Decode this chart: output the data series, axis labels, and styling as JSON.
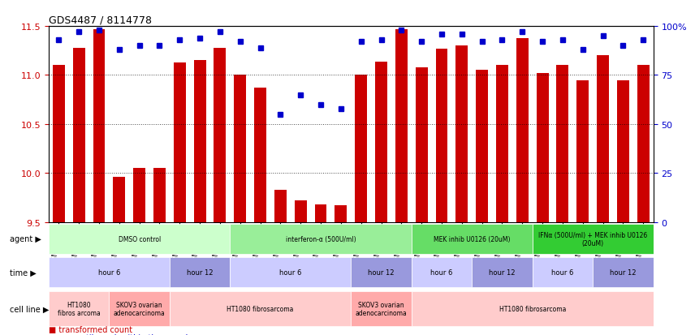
{
  "title": "GDS4487 / 8114778",
  "samples": [
    "GSM768611",
    "GSM768612",
    "GSM768613",
    "GSM768635",
    "GSM768636",
    "GSM768637",
    "GSM768614",
    "GSM768615",
    "GSM768616",
    "GSM768617",
    "GSM768618",
    "GSM768619",
    "GSM768638",
    "GSM768639",
    "GSM768640",
    "GSM768620",
    "GSM768621",
    "GSM768622",
    "GSM768623",
    "GSM768624",
    "GSM768625",
    "GSM768626",
    "GSM768627",
    "GSM768628",
    "GSM768629",
    "GSM768630",
    "GSM768631",
    "GSM768632",
    "GSM768633",
    "GSM768634"
  ],
  "red_values": [
    11.1,
    11.28,
    11.47,
    9.96,
    10.05,
    10.05,
    11.13,
    11.15,
    11.28,
    11.0,
    10.87,
    9.83,
    9.72,
    9.68,
    9.67,
    11.0,
    11.14,
    11.47,
    11.08,
    11.27,
    11.3,
    11.05,
    11.1,
    11.38,
    11.02,
    11.1,
    10.95,
    11.2,
    10.95,
    11.1
  ],
  "blue_values": [
    93,
    97,
    98,
    88,
    90,
    90,
    93,
    94,
    97,
    92,
    89,
    55,
    65,
    60,
    58,
    92,
    93,
    98,
    92,
    96,
    96,
    92,
    93,
    97,
    92,
    93,
    88,
    95,
    90,
    93
  ],
  "ylim_left": [
    9.5,
    11.5
  ],
  "ylim_right": [
    0,
    100
  ],
  "yticks_left": [
    9.5,
    10.0,
    10.5,
    11.0,
    11.5
  ],
  "yticks_right": [
    0,
    25,
    50,
    75,
    100
  ],
  "ytick_labels_right": [
    "0",
    "25",
    "50",
    "75",
    "100%"
  ],
  "bar_color": "#cc0000",
  "dot_color": "#0000cc",
  "grid_color": "#333333",
  "agent_row": {
    "label": "agent",
    "segments": [
      {
        "text": "DMSO control",
        "start": 0,
        "end": 9,
        "color": "#ccffcc"
      },
      {
        "text": "interferon-α (500U/ml)",
        "start": 9,
        "end": 18,
        "color": "#99ee99"
      },
      {
        "text": "MEK inhib U0126 (20uM)",
        "start": 18,
        "end": 24,
        "color": "#66dd66"
      },
      {
        "text": "IFNα (500U/ml) + MEK inhib U0126\n(20uM)",
        "start": 24,
        "end": 30,
        "color": "#33cc33"
      }
    ]
  },
  "time_row": {
    "label": "time",
    "segments": [
      {
        "text": "hour 6",
        "start": 0,
        "end": 6,
        "color": "#ccccff"
      },
      {
        "text": "hour 12",
        "start": 6,
        "end": 9,
        "color": "#9999dd"
      },
      {
        "text": "hour 6",
        "start": 9,
        "end": 15,
        "color": "#ccccff"
      },
      {
        "text": "hour 12",
        "start": 15,
        "end": 18,
        "color": "#9999dd"
      },
      {
        "text": "hour 6",
        "start": 18,
        "end": 21,
        "color": "#ccccff"
      },
      {
        "text": "hour 12",
        "start": 21,
        "end": 24,
        "color": "#9999dd"
      },
      {
        "text": "hour 6",
        "start": 24,
        "end": 27,
        "color": "#ccccff"
      },
      {
        "text": "hour 12",
        "start": 27,
        "end": 30,
        "color": "#9999dd"
      }
    ]
  },
  "cell_row": {
    "label": "cell line",
    "segments": [
      {
        "text": "HT1080\nfibros arcoma",
        "start": 0,
        "end": 3,
        "color": "#ffcccc"
      },
      {
        "text": "SKOV3 ovarian\nadenocarcinoma",
        "start": 3,
        "end": 6,
        "color": "#ffaaaa"
      },
      {
        "text": "HT1080 fibrosarcoma",
        "start": 6,
        "end": 15,
        "color": "#ffcccc"
      },
      {
        "text": "SKOV3 ovarian\nadenocarcinoma",
        "start": 15,
        "end": 18,
        "color": "#ffaaaa"
      },
      {
        "text": "HT1080 fibrosarcoma",
        "start": 18,
        "end": 30,
        "color": "#ffcccc"
      }
    ]
  }
}
